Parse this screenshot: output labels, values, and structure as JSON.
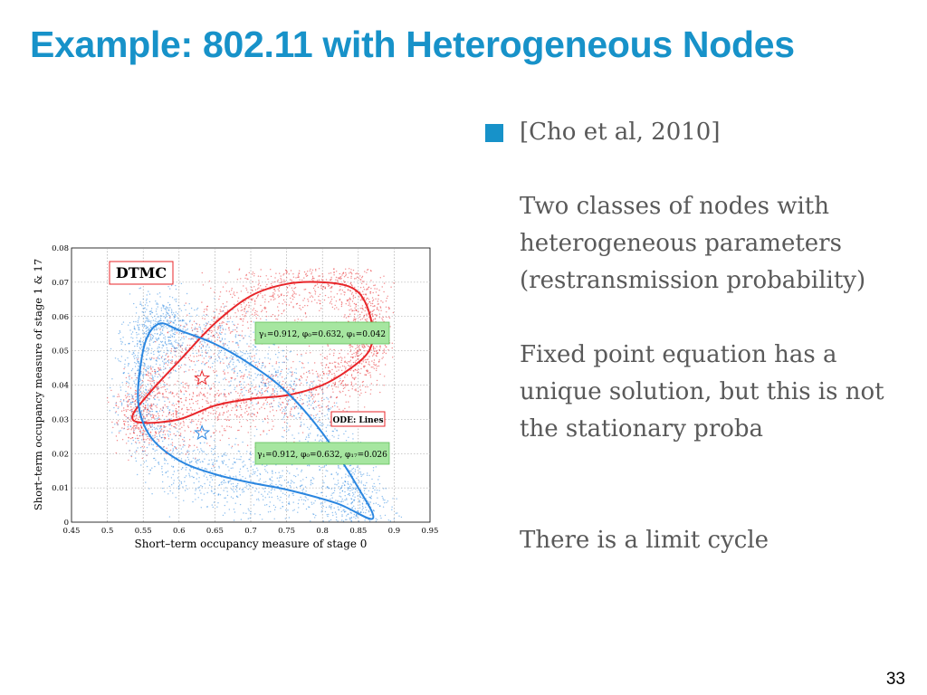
{
  "slide": {
    "title": "Example: 802.11 with Heterogeneous Nodes",
    "page_number": "33",
    "bullet_color": "#1792c9",
    "bullet": "[Cho et al, 2010]",
    "paragraphs": [
      "Two classes of nodes with heterogeneous parameters (restransmission probability)",
      "Fixed point equation has a unique solution, but this is not the stationary proba",
      "There is a limit cycle"
    ]
  },
  "chart_data": {
    "type": "scatter",
    "xlabel": "Short–term occupancy measure of stage 0",
    "ylabel": "Short–term occupancy measure of stage 1 & 17",
    "xlim": [
      0.45,
      0.95
    ],
    "ylim": [
      0,
      0.08
    ],
    "x_ticks": [
      "0.45",
      "0.5",
      "0.55",
      "0.6",
      "0.65",
      "0.7",
      "0.75",
      "0.8",
      "0.85",
      "0.9",
      "0.95"
    ],
    "y_ticks": [
      "0",
      "0.01",
      "0.02",
      "0.03",
      "0.04",
      "0.05",
      "0.06",
      "0.07",
      "0.08"
    ],
    "grid": true,
    "annotations": {
      "dtmc_label": "DTMC",
      "ode_label": "ODE: Lines",
      "red_param_label": "γ₁=0.912, φ₀=0.632, φ₁=0.042",
      "blue_param_label": "γ₁=0.912, φ₀=0.632, φ₁₇=0.026"
    },
    "colors": {
      "red": "#e8262a",
      "blue": "#2a86e0",
      "label_box_fill": "#a6e6a0"
    },
    "series": [
      {
        "color": "red",
        "cloud_x_range": [
          0.5,
          0.9
        ],
        "cloud_y_range": [
          0.018,
          0.074
        ],
        "limit_cycle": [
          [
            0.535,
            0.031
          ],
          [
            0.55,
            0.029
          ],
          [
            0.6,
            0.03
          ],
          [
            0.65,
            0.034
          ],
          [
            0.7,
            0.036
          ],
          [
            0.75,
            0.037
          ],
          [
            0.8,
            0.04
          ],
          [
            0.84,
            0.045
          ],
          [
            0.865,
            0.05
          ],
          [
            0.87,
            0.056
          ],
          [
            0.86,
            0.064
          ],
          [
            0.84,
            0.0685
          ],
          [
            0.8,
            0.07
          ],
          [
            0.75,
            0.0695
          ],
          [
            0.7,
            0.066
          ],
          [
            0.65,
            0.058
          ],
          [
            0.6,
            0.047
          ],
          [
            0.56,
            0.038
          ],
          [
            0.535,
            0.031
          ]
        ],
        "fixed_point": [
          0.632,
          0.042
        ]
      },
      {
        "color": "blue",
        "cloud_x_range": [
          0.5,
          0.94
        ],
        "cloud_y_range": [
          0,
          0.07
        ],
        "limit_cycle": [
          [
            0.575,
            0.058
          ],
          [
            0.6,
            0.056
          ],
          [
            0.65,
            0.052
          ],
          [
            0.7,
            0.046
          ],
          [
            0.75,
            0.038
          ],
          [
            0.8,
            0.026
          ],
          [
            0.85,
            0.01
          ],
          [
            0.87,
            0.001
          ],
          [
            0.82,
            0.0055
          ],
          [
            0.75,
            0.0095
          ],
          [
            0.7,
            0.0115
          ],
          [
            0.65,
            0.014
          ],
          [
            0.6,
            0.018
          ],
          [
            0.56,
            0.025
          ],
          [
            0.543,
            0.035
          ],
          [
            0.548,
            0.048
          ],
          [
            0.558,
            0.055
          ],
          [
            0.575,
            0.058
          ]
        ],
        "fixed_point": [
          0.632,
          0.026
        ]
      }
    ]
  }
}
